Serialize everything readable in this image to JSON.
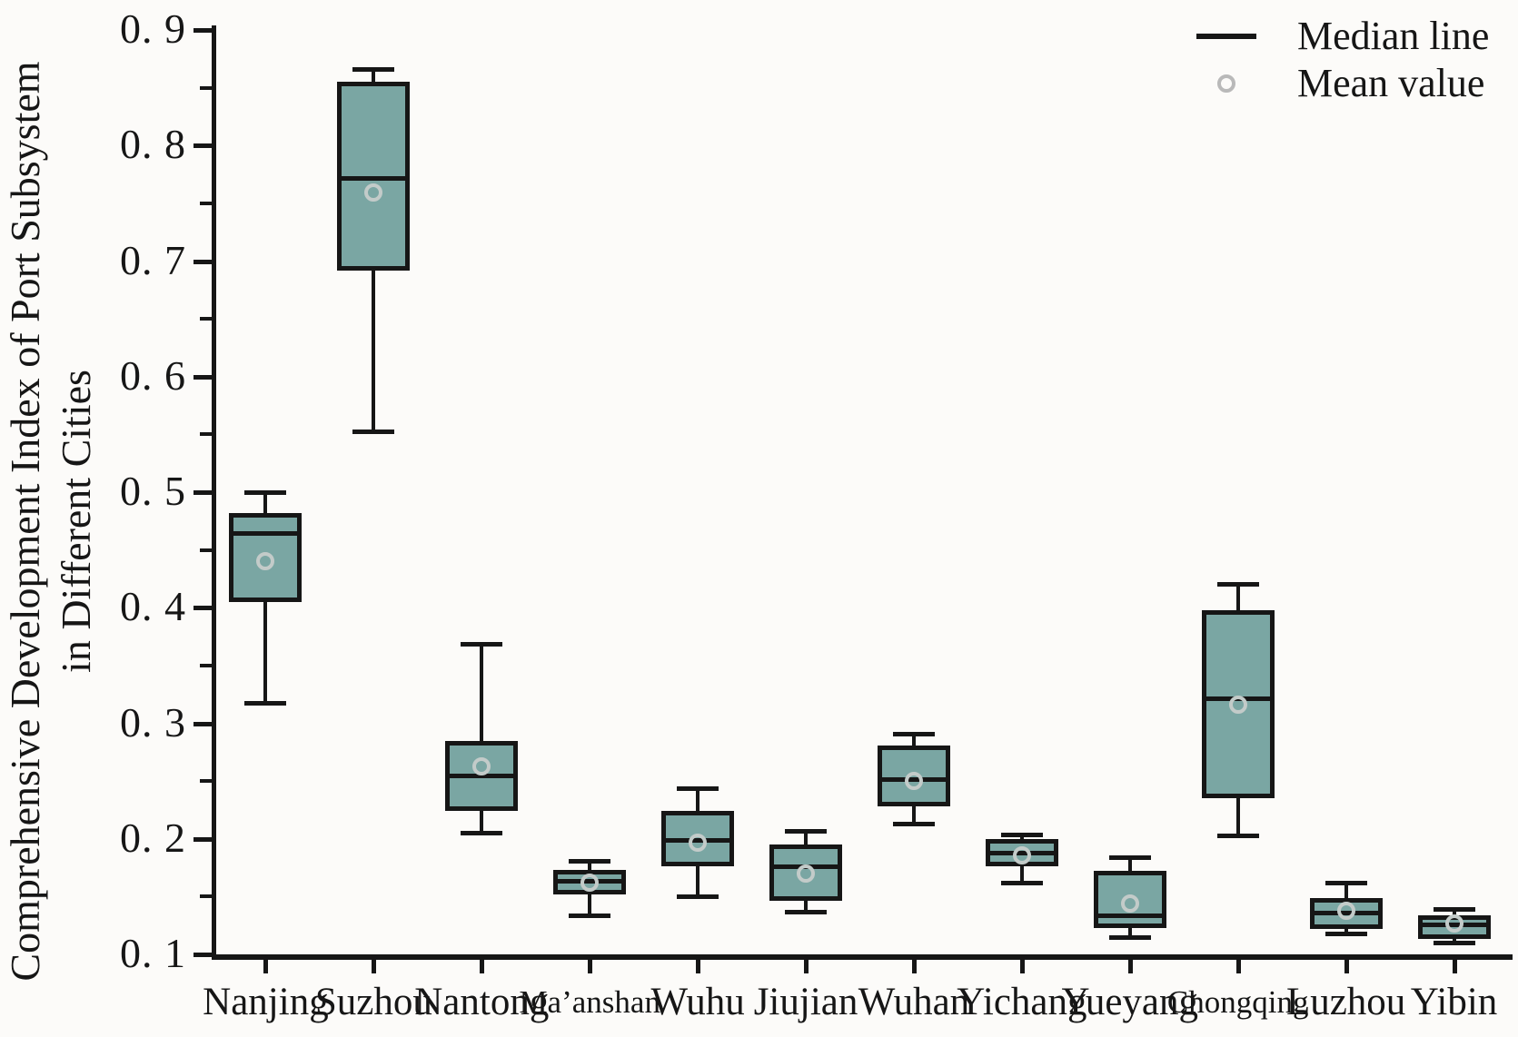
{
  "chart_data": {
    "type": "boxplot",
    "title": "",
    "ylabel_line1": "Comprehensive Development Index of Port Subsystem",
    "ylabel_line2": "in Different Cities",
    "xlabel": "",
    "ylim": [
      0.1,
      0.9
    ],
    "grid": false,
    "legend_position": "top-right",
    "y_ticks": [
      {
        "value": 0.1,
        "label": "0. 1"
      },
      {
        "value": 0.2,
        "label": "0. 2"
      },
      {
        "value": 0.3,
        "label": "0. 3"
      },
      {
        "value": 0.4,
        "label": "0. 4"
      },
      {
        "value": 0.5,
        "label": "0. 5"
      },
      {
        "value": 0.6,
        "label": "0. 6"
      },
      {
        "value": 0.7,
        "label": "0. 7"
      },
      {
        "value": 0.8,
        "label": "0. 8"
      },
      {
        "value": 0.9,
        "label": "0. 9"
      }
    ],
    "y_minor_ticks": [
      0.15,
      0.25,
      0.35,
      0.45,
      0.55,
      0.65,
      0.75,
      0.85
    ],
    "legend": [
      {
        "symbol": "median-line",
        "label": "Median line"
      },
      {
        "symbol": "mean-circle",
        "label": "Mean value"
      }
    ],
    "colors": {
      "box_fill": "#7aa6a3",
      "box_border": "#161616",
      "axis": "#161616",
      "mean_ring": "#c3cbc9",
      "text": "#161616",
      "background": "#fcfbf9"
    },
    "boxes": [
      {
        "city": "Nanjing",
        "small_label": false,
        "min": 0.318,
        "q1": 0.405,
        "median": 0.465,
        "mean": 0.44,
        "q3": 0.482,
        "max": 0.5
      },
      {
        "city": "Suzhou",
        "small_label": false,
        "min": 0.553,
        "q1": 0.692,
        "median": 0.772,
        "mean": 0.759,
        "q3": 0.855,
        "max": 0.866
      },
      {
        "city": "Nantong",
        "small_label": false,
        "min": 0.205,
        "q1": 0.224,
        "median": 0.255,
        "mean": 0.263,
        "q3": 0.285,
        "max": 0.369
      },
      {
        "city": "Ma’anshan",
        "small_label": true,
        "min": 0.134,
        "q1": 0.152,
        "median": 0.164,
        "mean": 0.162,
        "q3": 0.173,
        "max": 0.181
      },
      {
        "city": "Wuhu",
        "small_label": false,
        "min": 0.15,
        "q1": 0.176,
        "median": 0.199,
        "mean": 0.197,
        "q3": 0.224,
        "max": 0.244
      },
      {
        "city": "Jiujian",
        "small_label": false,
        "min": 0.137,
        "q1": 0.146,
        "median": 0.176,
        "mean": 0.17,
        "q3": 0.195,
        "max": 0.207
      },
      {
        "city": "Wuhan",
        "small_label": false,
        "min": 0.213,
        "q1": 0.228,
        "median": 0.252,
        "mean": 0.25,
        "q3": 0.281,
        "max": 0.291
      },
      {
        "city": "Yichang",
        "small_label": false,
        "min": 0.162,
        "q1": 0.176,
        "median": 0.188,
        "mean": 0.186,
        "q3": 0.2,
        "max": 0.204
      },
      {
        "city": "Yueyang",
        "small_label": false,
        "min": 0.115,
        "q1": 0.123,
        "median": 0.134,
        "mean": 0.144,
        "q3": 0.172,
        "max": 0.184
      },
      {
        "city": "Chongqing",
        "small_label": true,
        "min": 0.203,
        "q1": 0.235,
        "median": 0.322,
        "mean": 0.316,
        "q3": 0.398,
        "max": 0.421
      },
      {
        "city": "Luzhou",
        "small_label": false,
        "min": 0.118,
        "q1": 0.122,
        "median": 0.136,
        "mean": 0.138,
        "q3": 0.149,
        "max": 0.162
      },
      {
        "city": "Yibin",
        "small_label": false,
        "min": 0.11,
        "q1": 0.113,
        "median": 0.126,
        "mean": 0.127,
        "q3": 0.134,
        "max": 0.139
      }
    ]
  }
}
